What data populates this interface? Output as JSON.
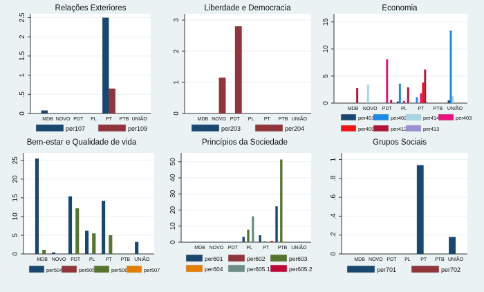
{
  "chart_data": [
    {
      "type": "bar",
      "title": "Relações Exteriores",
      "categories": [
        "MDB",
        "NOVO",
        "PDT",
        "PL",
        "PT",
        "PTB",
        "UNIÃO"
      ],
      "ylim": [
        0,
        2.6
      ],
      "yticks": [
        0,
        0.5,
        1,
        1.5,
        2,
        2.5
      ],
      "ytick_labels": [
        "0",
        ".5",
        "1",
        "1.5",
        "2",
        "2.5"
      ],
      "grid": true,
      "legend_position": "bottom",
      "series": [
        {
          "name": "per107",
          "color": "#1a476f",
          "values": [
            0.08,
            0,
            0,
            0,
            2.5,
            0,
            0
          ]
        },
        {
          "name": "per109",
          "color": "#90353b",
          "values": [
            0,
            0,
            0,
            0,
            0.65,
            0,
            0
          ]
        }
      ]
    },
    {
      "type": "bar",
      "title": "Liberdade e Democracia",
      "categories": [
        "MDB",
        "NOVO",
        "PDT",
        "PL",
        "PT",
        "PTB",
        "UNIÃO"
      ],
      "ylim": [
        0,
        3.2
      ],
      "yticks": [
        0,
        1,
        2,
        3
      ],
      "ytick_labels": [
        "0",
        "1",
        "2",
        "3"
      ],
      "grid": true,
      "legend_position": "bottom",
      "series": [
        {
          "name": "per203",
          "color": "#1a476f",
          "values": [
            0,
            0,
            0,
            0,
            0,
            0,
            0
          ]
        },
        {
          "name": "per204",
          "color": "#90353b",
          "values": [
            0,
            1.15,
            2.8,
            0,
            0,
            0,
            0
          ]
        }
      ]
    },
    {
      "type": "bar",
      "title": "Economia",
      "categories": [
        "MDB",
        "NOVO",
        "PDT",
        "PL",
        "PT",
        "PTB",
        "UNIÃO"
      ],
      "ylim": [
        0,
        16.5
      ],
      "yticks": [
        0,
        5,
        10,
        15
      ],
      "ytick_labels": [
        "0",
        "5",
        "10",
        "15"
      ],
      "grid": true,
      "legend_position": "bottom",
      "series": [
        {
          "name": "per401",
          "color": "#1a476f",
          "values": [
            0,
            0,
            0,
            0.3,
            0,
            0,
            0.5
          ]
        },
        {
          "name": "per402",
          "color": "#1e88e5",
          "values": [
            0,
            0,
            0,
            3.6,
            1.1,
            0,
            13.4
          ]
        },
        {
          "name": "per414",
          "color": "#a8d4e4",
          "values": [
            0,
            3.4,
            0,
            0,
            0,
            0,
            1.3
          ]
        },
        {
          "name": "per403",
          "color": "#e8127c",
          "values": [
            0,
            0,
            8.1,
            0.4,
            1.8,
            0,
            0
          ]
        },
        {
          "name": "per409",
          "color": "#f01414",
          "values": [
            0,
            0,
            0,
            0,
            3.8,
            0,
            0
          ]
        },
        {
          "name": "per412",
          "color": "#b0163a",
          "values": [
            2.8,
            0,
            0.6,
            2.9,
            6.2,
            0,
            0
          ]
        },
        {
          "name": "per413",
          "color": "#9b8fd0",
          "values": [
            0,
            0,
            0,
            0,
            0.2,
            0,
            0
          ]
        }
      ]
    },
    {
      "type": "bar",
      "title": "Bem-estar e Qualidade de vida",
      "categories": [
        "MDB",
        "NOVO",
        "PDT",
        "PL",
        "PT",
        "PTB",
        "UNIÃO"
      ],
      "ylim": [
        0,
        27
      ],
      "yticks": [
        0,
        5,
        10,
        15,
        20,
        25
      ],
      "ytick_labels": [
        "0",
        "5",
        "10",
        "15",
        "20",
        "25"
      ],
      "grid": true,
      "legend_position": "bottom",
      "series": [
        {
          "name": "per504",
          "color": "#1a476f",
          "values": [
            25.5,
            0.4,
            15.4,
            6.2,
            14.2,
            0,
            3.2
          ]
        },
        {
          "name": "per505",
          "color": "#90353b",
          "values": [
            0,
            0,
            0,
            0,
            0,
            0,
            0
          ]
        },
        {
          "name": "per506",
          "color": "#55752f",
          "values": [
            1.1,
            0,
            12.2,
            5.5,
            5.0,
            0,
            0
          ]
        },
        {
          "name": "per507",
          "color": "#e37e00",
          "values": [
            0,
            0,
            0,
            0,
            0,
            0,
            0
          ]
        }
      ]
    },
    {
      "type": "bar",
      "title": "Princípios da Sociedade",
      "categories": [
        "MDB",
        "NOVO",
        "PDT",
        "PL",
        "PT",
        "PTB",
        "UNIÃO"
      ],
      "ylim": [
        0,
        55.5
      ],
      "yticks": [
        0,
        10,
        20,
        30,
        40,
        50
      ],
      "ytick_labels": [
        "0",
        "10",
        "20",
        "30",
        "40",
        "50"
      ],
      "grid": true,
      "legend_position": "bottom",
      "series": [
        {
          "name": "per601",
          "color": "#1a476f",
          "values": [
            0.3,
            0,
            0,
            3.3,
            4.3,
            22.3,
            0
          ]
        },
        {
          "name": "per602",
          "color": "#90353b",
          "values": [
            0,
            0,
            0,
            0,
            0,
            0,
            0
          ]
        },
        {
          "name": "per603",
          "color": "#55752f",
          "values": [
            0.3,
            0,
            0,
            7.8,
            0.6,
            51.4,
            0
          ]
        },
        {
          "name": "per604",
          "color": "#e37e00",
          "values": [
            0,
            0,
            0,
            0,
            0,
            0,
            0
          ]
        },
        {
          "name": "per605.1",
          "color": "#6e8e84",
          "values": [
            0,
            0,
            0,
            16.1,
            0,
            0,
            0
          ]
        },
        {
          "name": "per605.2",
          "color": "#c10534",
          "values": [
            0,
            0,
            0,
            0,
            0.8,
            0,
            0
          ]
        }
      ]
    },
    {
      "type": "bar",
      "title": "Grupos Sociais",
      "categories": [
        "MDB",
        "NOVO",
        "PDT",
        "PL",
        "PT",
        "PTB",
        "UNIÃO"
      ],
      "ylim": [
        0,
        1.07
      ],
      "yticks": [
        0,
        0.2,
        0.4,
        0.6,
        0.8,
        1
      ],
      "ytick_labels": [
        "0",
        ".2",
        ".4",
        ".6",
        ".8",
        "1"
      ],
      "grid": true,
      "legend_position": "bottom",
      "series": [
        {
          "name": "per701",
          "color": "#1a476f",
          "values": [
            0,
            0,
            0,
            0,
            0.94,
            0,
            0.18
          ]
        },
        {
          "name": "per702",
          "color": "#90353b",
          "values": [
            0,
            0,
            0,
            0,
            0,
            0,
            0
          ]
        }
      ]
    }
  ]
}
